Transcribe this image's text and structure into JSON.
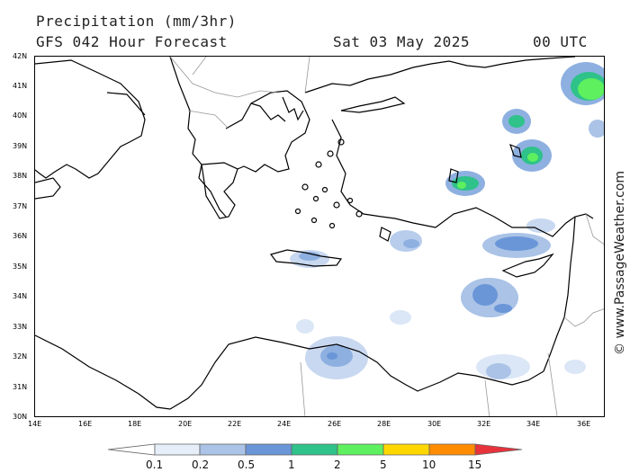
{
  "header": {
    "title": "Precipitation (mm/3hr)",
    "subtitle": "GFS 042 Hour Forecast",
    "date": "Sat 03 May 2025",
    "time": "00 UTC"
  },
  "credit": "© www.PassageWeather.com",
  "map": {
    "lat_labels": [
      "42N",
      "41N",
      "40N",
      "39N",
      "38N",
      "37N",
      "36N",
      "35N",
      "34N",
      "33N",
      "32N",
      "31N",
      "30N"
    ],
    "lon_labels": [
      "14E",
      "16E",
      "18E",
      "20E",
      "22E",
      "24E",
      "26E",
      "28E",
      "30E",
      "32E",
      "34E",
      "36E"
    ],
    "land_color": "#ffffff",
    "coast_color": "#000000",
    "border_color": "#999999"
  },
  "legend": {
    "labels": [
      "0.1",
      "0.2",
      "0.5",
      "1",
      "2",
      "5",
      "10",
      "15"
    ],
    "colors": [
      "#ffffff",
      "#e6eef9",
      "#aac3e6",
      "#6a96d8",
      "#2fc28a",
      "#5ef05e",
      "#ffd700",
      "#ff8c00",
      "#e8323c"
    ]
  }
}
